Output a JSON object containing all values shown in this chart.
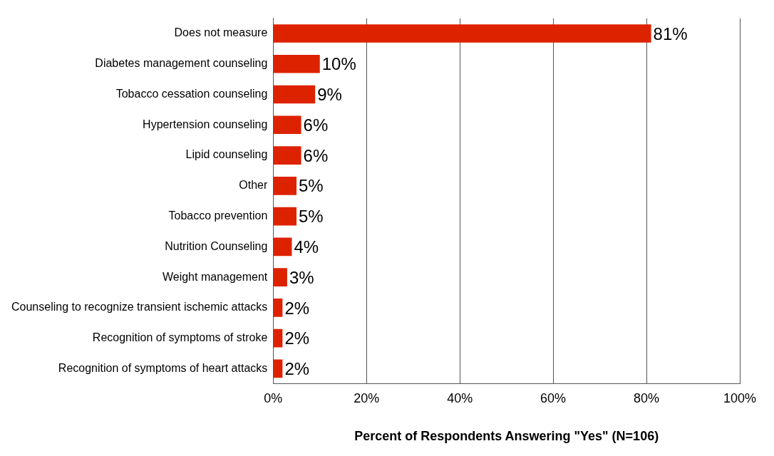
{
  "chart_data": {
    "type": "bar",
    "orientation": "horizontal",
    "xlabel": "Percent of Respondents Answering \"Yes\" (N=106)",
    "categories": [
      "Does not measure",
      "Diabetes management counseling",
      "Tobacco cessation counseling",
      "Hypertension counseling",
      "Lipid counseling",
      "Other",
      "Tobacco prevention",
      "Nutrition Counseling",
      "Weight management",
      "Counseling to recognize transient ischemic attacks",
      "Recognition of symptoms of stroke",
      "Recognition of symptoms of heart attacks"
    ],
    "values": [
      81,
      10,
      9,
      6,
      6,
      5,
      5,
      4,
      3,
      2,
      2,
      2
    ],
    "value_labels": [
      "81%",
      "10%",
      "9%",
      "6%",
      "6%",
      "5%",
      "5%",
      "4%",
      "3%",
      "2%",
      "2%",
      "2%"
    ],
    "color": "#dd2200",
    "xlim": [
      0,
      100
    ],
    "xticks": [
      {
        "value": 0,
        "label": "0%"
      },
      {
        "value": 20,
        "label": "20%"
      },
      {
        "value": 40,
        "label": "40%"
      },
      {
        "value": 60,
        "label": "60%"
      },
      {
        "value": 80,
        "label": "80%"
      },
      {
        "value": 100,
        "label": "100%"
      }
    ],
    "grid": "x",
    "legend": false
  }
}
